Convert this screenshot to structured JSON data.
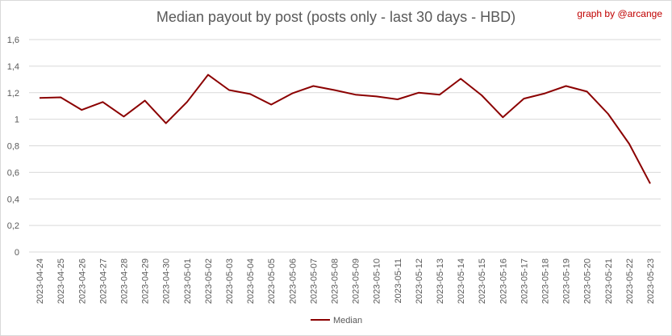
{
  "header": {
    "credit": "graph by @arcange"
  },
  "chart_data": {
    "type": "line",
    "title": "Median payout by post (posts only - last 30 days - HBD)",
    "xlabel": "",
    "ylabel": "",
    "ylim": [
      0,
      1.6
    ],
    "yticks": [
      "0",
      "0,2",
      "0,4",
      "0,6",
      "0,8",
      "1",
      "1,2",
      "1,4",
      "1,6"
    ],
    "grid": true,
    "legend_position": "bottom",
    "categories": [
      "2023-04-24",
      "2023-04-25",
      "2023-04-26",
      "2023-04-27",
      "2023-04-28",
      "2023-04-29",
      "2023-04-30",
      "2023-05-01",
      "2023-05-02",
      "2023-05-03",
      "2023-05-04",
      "2023-05-05",
      "2023-05-06",
      "2023-05-07",
      "2023-05-08",
      "2023-05-09",
      "2023-05-10",
      "2023-05-11",
      "2023-05-12",
      "2023-05-13",
      "2023-05-14",
      "2023-05-15",
      "2023-05-16",
      "2023-05-17",
      "2023-05-18",
      "2023-05-19",
      "2023-05-20",
      "2023-05-21",
      "2023-05-22",
      "2023-05-23"
    ],
    "series": [
      {
        "name": "Median",
        "color": "#8b0000",
        "values": [
          1.16,
          1.165,
          1.07,
          1.13,
          1.02,
          1.14,
          0.97,
          1.13,
          1.335,
          1.22,
          1.19,
          1.11,
          1.195,
          1.25,
          1.22,
          1.185,
          1.172,
          1.15,
          1.2,
          1.185,
          1.305,
          1.18,
          1.015,
          1.155,
          1.195,
          1.25,
          1.208,
          1.04,
          0.815,
          0.515
        ]
      }
    ]
  }
}
